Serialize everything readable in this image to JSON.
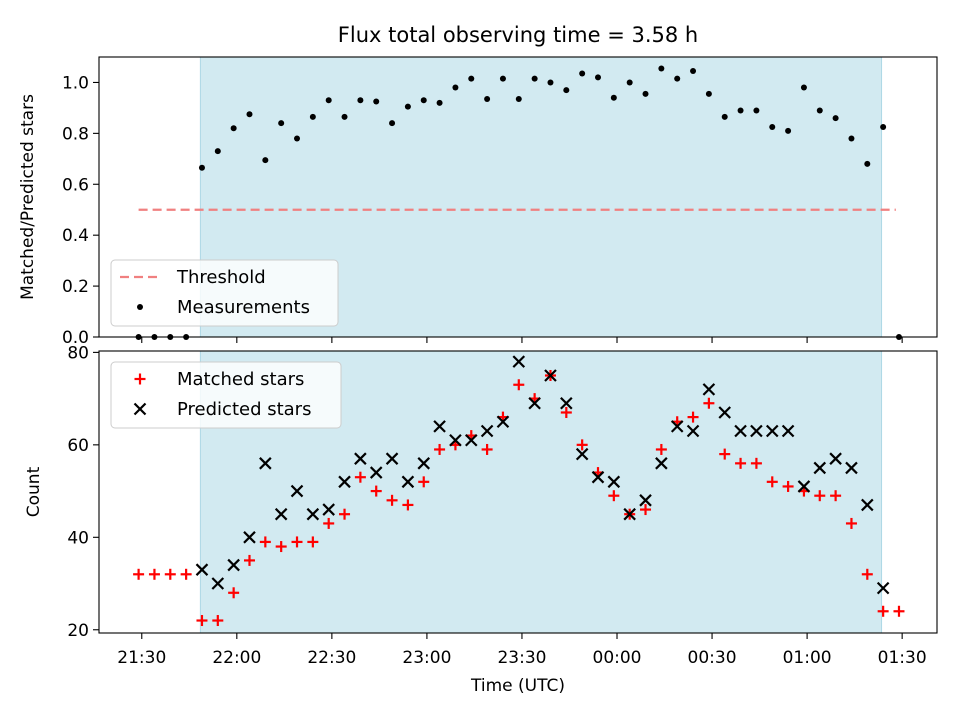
{
  "chart_data": {
    "type": "scatter",
    "title": "Flux total observing time = 3.58 h",
    "xlabel": "Time (UTC)",
    "x_tick_labels": [
      "21:30",
      "22:00",
      "22:30",
      "23:00",
      "23:30",
      "00:00",
      "00:30",
      "01:00",
      "01:30"
    ],
    "x_ticks_minutes_after_2130": [
      0,
      30,
      60,
      90,
      120,
      150,
      180,
      210,
      240
    ],
    "xlim_minutes_after_2130": [
      -13.5,
      251
    ],
    "shaded_span_minutes_after_2130": [
      18.5,
      233.5
    ],
    "shaded_color": "#add8e6",
    "panels": [
      {
        "ylabel": "Matched/Predicted stars",
        "ylim": [
          0,
          1.1
        ],
        "y_ticks": [
          0.0,
          0.2,
          0.4,
          0.6,
          0.8,
          1.0
        ],
        "y_tick_labels": [
          "0.0",
          "0.2",
          "0.4",
          "0.6",
          "0.8",
          "1.0"
        ],
        "legend_position": "lower-left",
        "threshold": {
          "name": "Threshold",
          "value": 0.5,
          "x_range": [
            -1,
            238
          ],
          "color": "#f08080",
          "style": "dashed"
        },
        "series": [
          {
            "name": "Measurements",
            "marker": "dot",
            "color": "#000000",
            "x": [
              -1,
              4,
              9,
              14,
              19,
              24,
              29,
              34,
              39,
              44,
              49,
              54,
              59,
              64,
              69,
              74,
              79,
              84,
              89,
              94,
              99,
              104,
              109,
              114,
              119,
              124,
              129,
              134,
              139,
              144,
              149,
              154,
              159,
              164,
              169,
              174,
              179,
              184,
              189,
              194,
              199,
              204,
              209,
              214,
              219,
              224,
              229,
              234,
              239
            ],
            "y": [
              0.0,
              0.0,
              0.0,
              0.0,
              0.665,
              0.73,
              0.82,
              0.875,
              0.695,
              0.84,
              0.78,
              0.865,
              0.93,
              0.865,
              0.93,
              0.925,
              0.84,
              0.905,
              0.93,
              0.92,
              0.98,
              1.015,
              0.935,
              1.015,
              0.935,
              1.015,
              1.0,
              0.97,
              1.035,
              1.02,
              0.94,
              1.0,
              0.955,
              1.055,
              1.015,
              1.045,
              0.955,
              0.865,
              0.89,
              0.89,
              0.825,
              0.81,
              0.98,
              0.89,
              0.86,
              0.78,
              0.68,
              0.825,
              0.0
            ]
          }
        ]
      },
      {
        "ylabel": "Count",
        "ylim": [
          19.3,
          80.3
        ],
        "y_ticks": [
          20,
          40,
          60,
          80
        ],
        "y_tick_labels": [
          "20",
          "40",
          "60",
          "80"
        ],
        "legend_position": "upper-left",
        "series": [
          {
            "name": "Matched stars",
            "marker": "plus",
            "color": "#ff0000",
            "x": [
              -1,
              4,
              9,
              14,
              19,
              24,
              29,
              34,
              39,
              44,
              49,
              54,
              59,
              64,
              69,
              74,
              79,
              84,
              89,
              94,
              99,
              104,
              109,
              114,
              119,
              124,
              129,
              134,
              139,
              144,
              149,
              154,
              159,
              164,
              169,
              174,
              179,
              184,
              189,
              194,
              199,
              204,
              209,
              214,
              219,
              224,
              229,
              234,
              239
            ],
            "y": [
              32,
              32,
              32,
              32,
              22,
              22,
              28,
              35,
              39,
              38,
              39,
              39,
              43,
              45,
              53,
              50,
              48,
              47,
              52,
              59,
              60,
              62,
              59,
              66,
              73,
              70,
              75,
              67,
              60,
              54,
              49,
              45,
              46,
              59,
              65,
              66,
              69,
              58,
              56,
              56,
              52,
              51,
              50,
              49,
              49,
              43,
              32,
              24,
              24
            ]
          },
          {
            "name": "Predicted stars",
            "marker": "x",
            "color": "#000000",
            "x": [
              19,
              24,
              29,
              34,
              39,
              44,
              49,
              54,
              59,
              64,
              69,
              74,
              79,
              84,
              89,
              94,
              99,
              104,
              109,
              114,
              119,
              124,
              129,
              134,
              139,
              144,
              149,
              154,
              159,
              164,
              169,
              174,
              179,
              184,
              189,
              194,
              199,
              204,
              209,
              214,
              219,
              224,
              229,
              234
            ],
            "y": [
              33,
              30,
              34,
              40,
              56,
              45,
              50,
              45,
              46,
              52,
              57,
              54,
              57,
              52,
              56,
              64,
              61,
              61,
              63,
              65,
              78,
              69,
              75,
              69,
              58,
              53,
              52,
              45,
              48,
              56,
              64,
              63,
              72,
              67,
              63,
              63,
              63,
              63,
              51,
              55,
              57,
              55,
              47,
              29
            ]
          }
        ]
      }
    ]
  }
}
